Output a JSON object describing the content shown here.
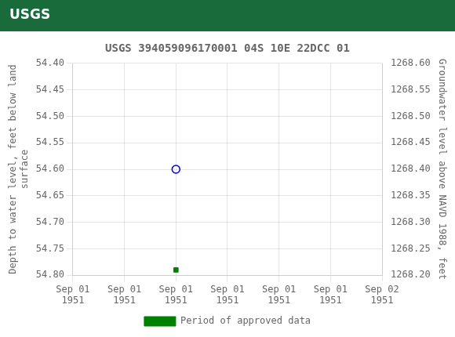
{
  "chart_data": {
    "type": "scatter",
    "title": "USGS 394059096170001 04S 10E 22DCC 01",
    "annotations": [
      "USGS"
    ],
    "y_label": "Depth to water level, feet below land\nsurface",
    "y2_label": "Groundwater level above NAVD 1988, feet",
    "xlim": [
      0,
      24
    ],
    "xticks": [
      {
        "value": 0,
        "label": "Sep 01\n1951"
      },
      {
        "value": 4,
        "label": "Sep 01\n1951"
      },
      {
        "value": 8,
        "label": "Sep 01\n1951"
      },
      {
        "value": 12,
        "label": "Sep 01\n1951"
      },
      {
        "value": 16,
        "label": "Sep 01\n1951"
      },
      {
        "value": 20,
        "label": "Sep 01\n1951"
      },
      {
        "value": 24,
        "label": "Sep 02\n1951"
      }
    ],
    "ylim": [
      54.8,
      54.4
    ],
    "yticks": [
      {
        "value": 54.4,
        "label": "54.40"
      },
      {
        "value": 54.45,
        "label": "54.45"
      },
      {
        "value": 54.5,
        "label": "54.50"
      },
      {
        "value": 54.55,
        "label": "54.55"
      },
      {
        "value": 54.6,
        "label": "54.60"
      },
      {
        "value": 54.65,
        "label": "54.65"
      },
      {
        "value": 54.7,
        "label": "54.70"
      },
      {
        "value": 54.75,
        "label": "54.75"
      },
      {
        "value": 54.8,
        "label": "54.80"
      }
    ],
    "y2lim": [
      1268.2,
      1268.6
    ],
    "y2ticks": [
      {
        "value": 1268.6,
        "label": "1268.60"
      },
      {
        "value": 1268.55,
        "label": "1268.55"
      },
      {
        "value": 1268.5,
        "label": "1268.50"
      },
      {
        "value": 1268.45,
        "label": "1268.45"
      },
      {
        "value": 1268.4,
        "label": "1268.40"
      },
      {
        "value": 1268.35,
        "label": "1268.35"
      },
      {
        "value": 1268.3,
        "label": "1268.30"
      },
      {
        "value": 1268.25,
        "label": "1268.25"
      },
      {
        "value": 1268.2,
        "label": "1268.20"
      }
    ],
    "grid": true,
    "legend": "bottom",
    "series": [
      {
        "color": "#0000cc",
        "marker": "circle-open",
        "x": [
          8
        ],
        "values": [
          54.6
        ]
      },
      {
        "name": "Period of approved data",
        "color": "#008000",
        "marker": "square",
        "x": [
          8
        ],
        "values": [
          54.79
        ]
      }
    ]
  }
}
